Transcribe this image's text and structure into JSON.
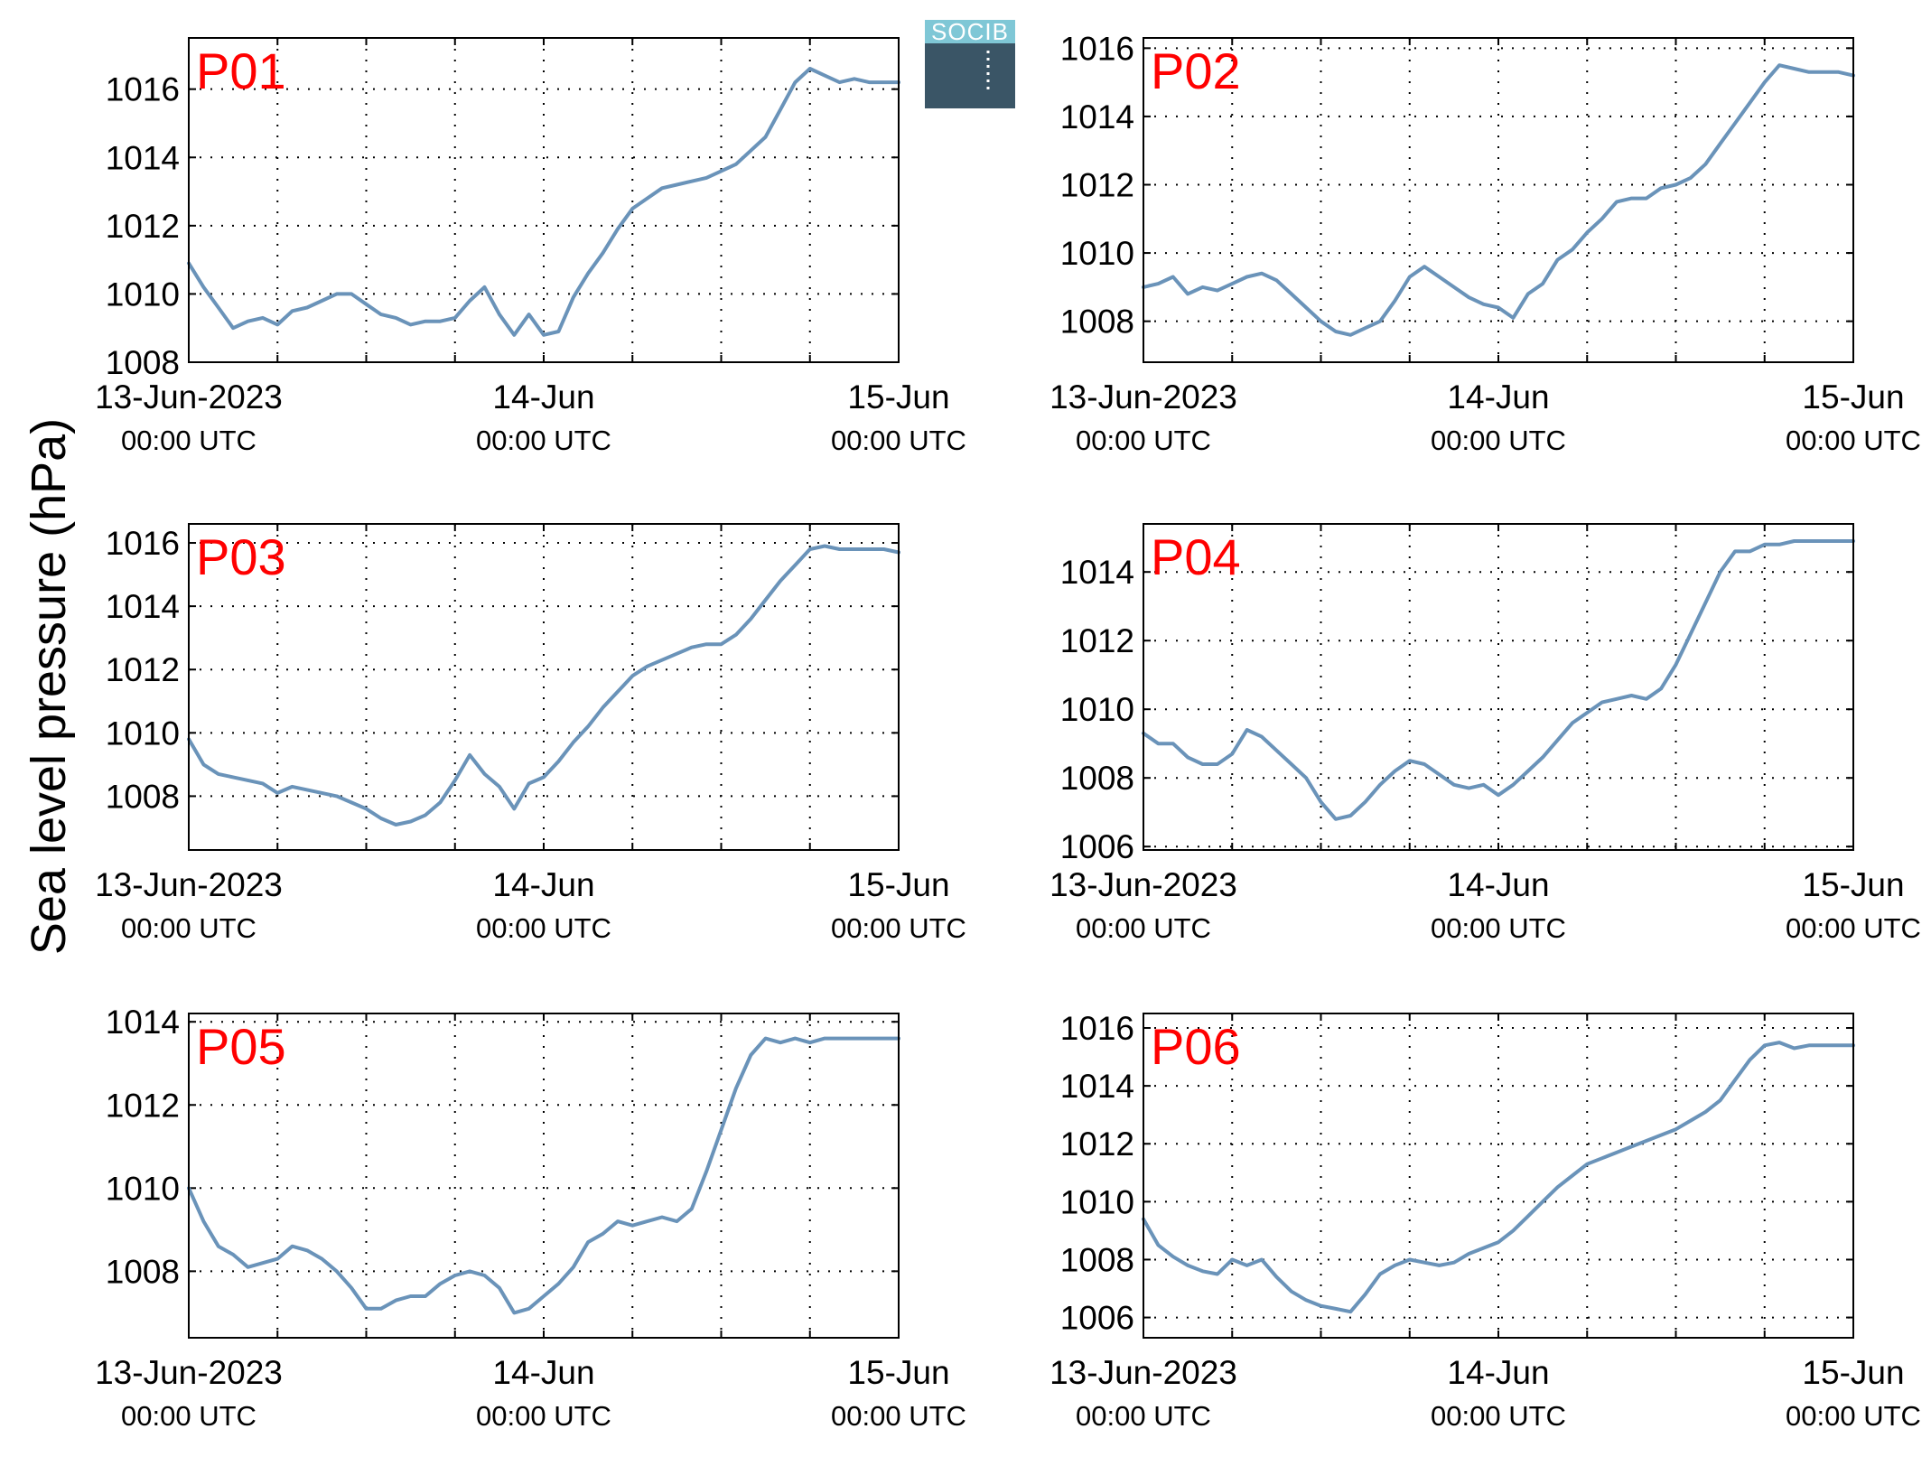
{
  "ylabel": "Sea level pressure (hPa)",
  "logo": {
    "text": "SOCIB"
  },
  "x_tick_labels": [
    {
      "date": "13-Jun-2023",
      "time": "00:00 UTC"
    },
    {
      "date": "14-Jun",
      "time": "00:00 UTC"
    },
    {
      "date": "15-Jun",
      "time": "00:00 UTC"
    }
  ],
  "colors": {
    "line": "#6a93b9",
    "panel_label": "#ff0000",
    "axis": "#000000",
    "grid": "#000000"
  },
  "chart_data": [
    {
      "type": "line",
      "title": "P01",
      "xunit": "hours since 13-Jun-2023 00:00 UTC",
      "xlim": [
        0,
        48
      ],
      "ylim": [
        1008,
        1017.5
      ],
      "yticks": [
        1008,
        1010,
        1012,
        1014,
        1016
      ],
      "grid": true,
      "x": [
        0,
        1,
        2,
        3,
        4,
        5,
        6,
        7,
        8,
        9,
        10,
        11,
        12,
        13,
        14,
        15,
        16,
        17,
        18,
        19,
        20,
        21,
        22,
        23,
        24,
        25,
        26,
        27,
        28,
        29,
        30,
        31,
        32,
        33,
        34,
        35,
        36,
        37,
        38,
        39,
        40,
        41,
        42,
        43,
        44,
        45,
        46,
        47,
        48
      ],
      "values": [
        1010.9,
        1010.2,
        1009.6,
        1009.0,
        1009.2,
        1009.3,
        1009.1,
        1009.5,
        1009.6,
        1009.8,
        1010.0,
        1010.0,
        1009.7,
        1009.4,
        1009.3,
        1009.1,
        1009.2,
        1009.2,
        1009.3,
        1009.8,
        1010.2,
        1009.4,
        1008.8,
        1009.4,
        1008.8,
        1008.9,
        1009.9,
        1010.6,
        1011.2,
        1011.9,
        1012.5,
        1012.8,
        1013.1,
        1013.2,
        1013.3,
        1013.4,
        1013.6,
        1013.8,
        1014.2,
        1014.6,
        1015.4,
        1016.2,
        1016.6,
        1016.4,
        1016.2,
        1016.3,
        1016.2,
        1016.2,
        1016.2
      ]
    },
    {
      "type": "line",
      "title": "P02",
      "xunit": "hours since 13-Jun-2023 00:00 UTC",
      "xlim": [
        0,
        48
      ],
      "ylim": [
        1006.8,
        1016.3
      ],
      "yticks": [
        1008,
        1010,
        1012,
        1014,
        1016
      ],
      "grid": true,
      "x": [
        0,
        1,
        2,
        3,
        4,
        5,
        6,
        7,
        8,
        9,
        10,
        11,
        12,
        13,
        14,
        15,
        16,
        17,
        18,
        19,
        20,
        21,
        22,
        23,
        24,
        25,
        26,
        27,
        28,
        29,
        30,
        31,
        32,
        33,
        34,
        35,
        36,
        37,
        38,
        39,
        40,
        41,
        42,
        43,
        44,
        45,
        46,
        47,
        48
      ],
      "values": [
        1009.0,
        1009.1,
        1009.3,
        1008.8,
        1009.0,
        1008.9,
        1009.1,
        1009.3,
        1009.4,
        1009.2,
        1008.8,
        1008.4,
        1008.0,
        1007.7,
        1007.6,
        1007.8,
        1008.0,
        1008.6,
        1009.3,
        1009.6,
        1009.3,
        1009.0,
        1008.7,
        1008.5,
        1008.4,
        1008.1,
        1008.8,
        1009.1,
        1009.8,
        1010.1,
        1010.6,
        1011.0,
        1011.5,
        1011.6,
        1011.6,
        1011.9,
        1012.0,
        1012.2,
        1012.6,
        1013.2,
        1013.8,
        1014.4,
        1015.0,
        1015.5,
        1015.4,
        1015.3,
        1015.3,
        1015.3,
        1015.2
      ]
    },
    {
      "type": "line",
      "title": "P03",
      "xunit": "hours since 13-Jun-2023 00:00 UTC",
      "xlim": [
        0,
        48
      ],
      "ylim": [
        1006.3,
        1016.6
      ],
      "yticks": [
        1008,
        1010,
        1012,
        1014,
        1016
      ],
      "grid": true,
      "x": [
        0,
        1,
        2,
        3,
        4,
        5,
        6,
        7,
        8,
        9,
        10,
        11,
        12,
        13,
        14,
        15,
        16,
        17,
        18,
        19,
        20,
        21,
        22,
        23,
        24,
        25,
        26,
        27,
        28,
        29,
        30,
        31,
        32,
        33,
        34,
        35,
        36,
        37,
        38,
        39,
        40,
        41,
        42,
        43,
        44,
        45,
        46,
        47,
        48
      ],
      "values": [
        1009.8,
        1009.0,
        1008.7,
        1008.6,
        1008.5,
        1008.4,
        1008.1,
        1008.3,
        1008.2,
        1008.1,
        1008.0,
        1007.8,
        1007.6,
        1007.3,
        1007.1,
        1007.2,
        1007.4,
        1007.8,
        1008.5,
        1009.3,
        1008.7,
        1008.3,
        1007.6,
        1008.4,
        1008.6,
        1009.1,
        1009.7,
        1010.2,
        1010.8,
        1011.3,
        1011.8,
        1012.1,
        1012.3,
        1012.5,
        1012.7,
        1012.8,
        1012.8,
        1013.1,
        1013.6,
        1014.2,
        1014.8,
        1015.3,
        1015.8,
        1015.9,
        1015.8,
        1015.8,
        1015.8,
        1015.8,
        1015.7
      ]
    },
    {
      "type": "line",
      "title": "P04",
      "xunit": "hours since 13-Jun-2023 00:00 UTC",
      "xlim": [
        0,
        48
      ],
      "ylim": [
        1005.9,
        1015.4
      ],
      "yticks": [
        1006,
        1008,
        1010,
        1012,
        1014
      ],
      "grid": true,
      "x": [
        0,
        1,
        2,
        3,
        4,
        5,
        6,
        7,
        8,
        9,
        10,
        11,
        12,
        13,
        14,
        15,
        16,
        17,
        18,
        19,
        20,
        21,
        22,
        23,
        24,
        25,
        26,
        27,
        28,
        29,
        30,
        31,
        32,
        33,
        34,
        35,
        36,
        37,
        38,
        39,
        40,
        41,
        42,
        43,
        44,
        45,
        46,
        47,
        48
      ],
      "values": [
        1009.3,
        1009.0,
        1009.0,
        1008.6,
        1008.4,
        1008.4,
        1008.7,
        1009.4,
        1009.2,
        1008.8,
        1008.4,
        1008.0,
        1007.3,
        1006.8,
        1006.9,
        1007.3,
        1007.8,
        1008.2,
        1008.5,
        1008.4,
        1008.1,
        1007.8,
        1007.7,
        1007.8,
        1007.5,
        1007.8,
        1008.2,
        1008.6,
        1009.1,
        1009.6,
        1009.9,
        1010.2,
        1010.3,
        1010.4,
        1010.3,
        1010.6,
        1011.3,
        1012.2,
        1013.1,
        1014.0,
        1014.6,
        1014.6,
        1014.8,
        1014.8,
        1014.9,
        1014.9,
        1014.9,
        1014.9,
        1014.9
      ]
    },
    {
      "type": "line",
      "title": "P05",
      "xunit": "hours since 13-Jun-2023 00:00 UTC",
      "xlim": [
        0,
        48
      ],
      "ylim": [
        1006.4,
        1014.2
      ],
      "yticks": [
        1008,
        1010,
        1012,
        1014
      ],
      "grid": true,
      "x": [
        0,
        1,
        2,
        3,
        4,
        5,
        6,
        7,
        8,
        9,
        10,
        11,
        12,
        13,
        14,
        15,
        16,
        17,
        18,
        19,
        20,
        21,
        22,
        23,
        24,
        25,
        26,
        27,
        28,
        29,
        30,
        31,
        32,
        33,
        34,
        35,
        36,
        37,
        38,
        39,
        40,
        41,
        42,
        43,
        44,
        45,
        46,
        47,
        48
      ],
      "values": [
        1010.0,
        1009.2,
        1008.6,
        1008.4,
        1008.1,
        1008.2,
        1008.3,
        1008.6,
        1008.5,
        1008.3,
        1008.0,
        1007.6,
        1007.1,
        1007.1,
        1007.3,
        1007.4,
        1007.4,
        1007.7,
        1007.9,
        1008.0,
        1007.9,
        1007.6,
        1007.0,
        1007.1,
        1007.4,
        1007.7,
        1008.1,
        1008.7,
        1008.9,
        1009.2,
        1009.1,
        1009.2,
        1009.3,
        1009.2,
        1009.5,
        1010.4,
        1011.4,
        1012.4,
        1013.2,
        1013.6,
        1013.5,
        1013.6,
        1013.5,
        1013.6,
        1013.6,
        1013.6,
        1013.6,
        1013.6,
        1013.6
      ]
    },
    {
      "type": "line",
      "title": "P06",
      "xunit": "hours since 13-Jun-2023 00:00 UTC",
      "xlim": [
        0,
        48
      ],
      "ylim": [
        1005.3,
        1016.5
      ],
      "yticks": [
        1006,
        1008,
        1010,
        1012,
        1014,
        1016
      ],
      "grid": true,
      "x": [
        0,
        1,
        2,
        3,
        4,
        5,
        6,
        7,
        8,
        9,
        10,
        11,
        12,
        13,
        14,
        15,
        16,
        17,
        18,
        19,
        20,
        21,
        22,
        23,
        24,
        25,
        26,
        27,
        28,
        29,
        30,
        31,
        32,
        33,
        34,
        35,
        36,
        37,
        38,
        39,
        40,
        41,
        42,
        43,
        44,
        45,
        46,
        47,
        48
      ],
      "values": [
        1009.4,
        1008.5,
        1008.1,
        1007.8,
        1007.6,
        1007.5,
        1008.0,
        1007.8,
        1008.0,
        1007.4,
        1006.9,
        1006.6,
        1006.4,
        1006.3,
        1006.2,
        1006.8,
        1007.5,
        1007.8,
        1008.0,
        1007.9,
        1007.8,
        1007.9,
        1008.2,
        1008.4,
        1008.6,
        1009.0,
        1009.5,
        1010.0,
        1010.5,
        1010.9,
        1011.3,
        1011.5,
        1011.7,
        1011.9,
        1012.1,
        1012.3,
        1012.5,
        1012.8,
        1013.1,
        1013.5,
        1014.2,
        1014.9,
        1015.4,
        1015.5,
        1015.3,
        1015.4,
        1015.4,
        1015.4,
        1015.4
      ]
    }
  ]
}
